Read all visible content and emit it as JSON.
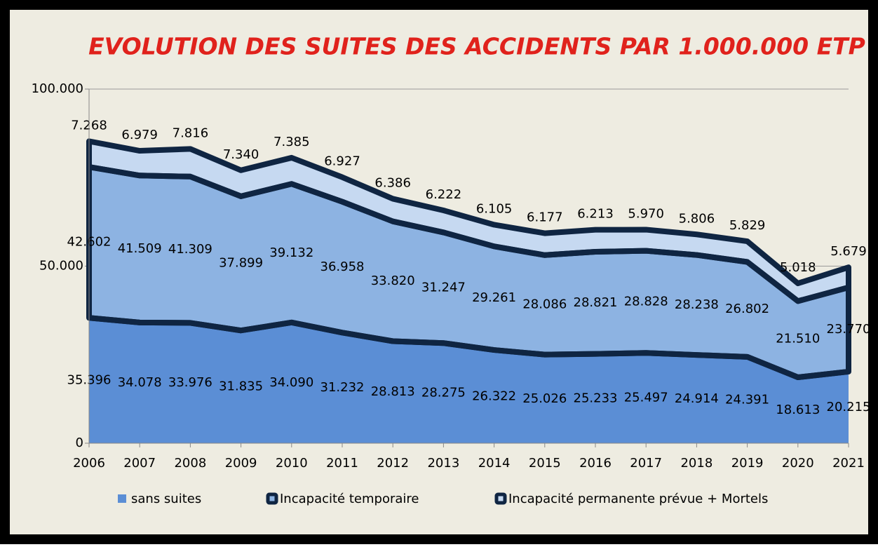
{
  "chart_data": {
    "type": "stacked-area",
    "title": "EVOLUTION DES SUITES DES ACCIDENTS PAR 1.000.000 ETP",
    "categories": [
      "2006",
      "2007",
      "2008",
      "2009",
      "2010",
      "2011",
      "2012",
      "2013",
      "2014",
      "2015",
      "2016",
      "2017",
      "2018",
      "2019",
      "2020",
      "2021"
    ],
    "ylim": [
      0,
      100000
    ],
    "yticks": [
      0,
      {
        "value": 50000,
        "label": "50.000"
      },
      {
        "value": 100000,
        "label": "100.000"
      }
    ],
    "grid": true,
    "outline_color": "#0f2542",
    "series": [
      {
        "name": "sans suites",
        "color": "#5b8ed5",
        "values": [
          35396,
          34078,
          33976,
          31835,
          34090,
          31232,
          28813,
          28275,
          26322,
          25026,
          25233,
          25497,
          24914,
          24391,
          18613,
          20215
        ],
        "value_labels": [
          "35.396",
          "34.078",
          "33.976",
          "31.835",
          "34.090",
          "31.232",
          "28.813",
          "28.275",
          "26.322",
          "25.026",
          "25.233",
          "25.497",
          "24.914",
          "24.391",
          "18.613",
          "20.215"
        ]
      },
      {
        "name": "Incapacité temporaire",
        "color": "#8db3e2",
        "values": [
          42602,
          41509,
          41309,
          37899,
          39132,
          36958,
          33820,
          31247,
          29261,
          28086,
          28821,
          28828,
          28238,
          26802,
          21510,
          23770
        ],
        "value_labels": [
          "42.602",
          "41.509",
          "41.309",
          "37.899",
          "39.132",
          "36.958",
          "33.820",
          "31.247",
          "29.261",
          "28.086",
          "28.821",
          "28.828",
          "28.238",
          "26.802",
          "21.510",
          "23.770"
        ]
      },
      {
        "name": "Incapacité permanente prévue + Mortels",
        "color": "#c6d9f1",
        "values": [
          7268,
          6979,
          7816,
          7340,
          7385,
          6927,
          6386,
          6222,
          6105,
          6177,
          6213,
          5970,
          5806,
          5829,
          5018,
          5679
        ],
        "value_labels": [
          "7.268",
          "6.979",
          "7.816",
          "7.340",
          "7.385",
          "6.927",
          "6.386",
          "6.222",
          "6.105",
          "6.177",
          "6.213",
          "5.970",
          "5.806",
          "5.829",
          "5.018",
          "5.679"
        ]
      }
    ]
  }
}
